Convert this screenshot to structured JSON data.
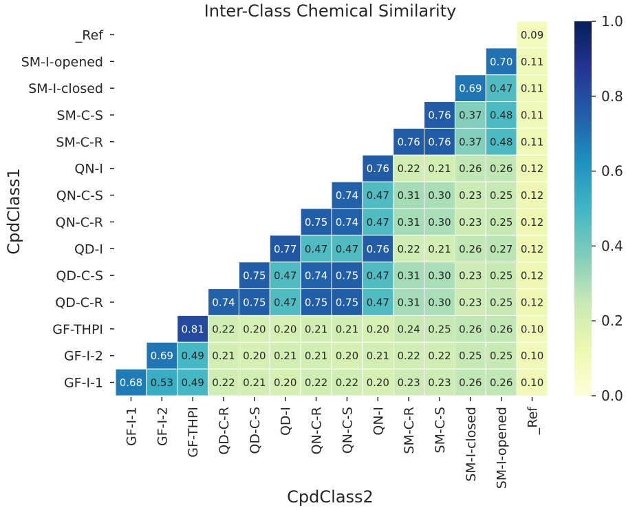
{
  "chart_data": {
    "type": "heatmap",
    "title": "Inter-Class Chemical Similarity",
    "xlabel": "CpdClass2",
    "ylabel": "CpdClass1",
    "x_categories": [
      "GF-I-1",
      "GF-I-2",
      "GF-THPI",
      "QD-C-R",
      "QD-C-S",
      "QD-I",
      "QN-C-R",
      "QN-C-S",
      "QN-I",
      "SM-C-R",
      "SM-C-S",
      "SM-I-closed",
      "SM-I-opened",
      "_Ref"
    ],
    "y_categories": [
      "_Ref",
      "SM-I-opened",
      "SM-I-closed",
      "SM-C-S",
      "SM-C-R",
      "QN-I",
      "QN-C-S",
      "QN-C-R",
      "QD-I",
      "QD-C-S",
      "QD-C-R",
      "GF-THPI",
      "GF-I-2",
      "GF-I-1"
    ],
    "values": [
      [
        null,
        null,
        null,
        null,
        null,
        null,
        null,
        null,
        null,
        null,
        null,
        null,
        null,
        0.09
      ],
      [
        null,
        null,
        null,
        null,
        null,
        null,
        null,
        null,
        null,
        null,
        null,
        null,
        0.7,
        0.11
      ],
      [
        null,
        null,
        null,
        null,
        null,
        null,
        null,
        null,
        null,
        null,
        null,
        0.69,
        0.47,
        0.11
      ],
      [
        null,
        null,
        null,
        null,
        null,
        null,
        null,
        null,
        null,
        null,
        0.76,
        0.37,
        0.48,
        0.11
      ],
      [
        null,
        null,
        null,
        null,
        null,
        null,
        null,
        null,
        null,
        0.76,
        0.76,
        0.37,
        0.48,
        0.11
      ],
      [
        null,
        null,
        null,
        null,
        null,
        null,
        null,
        null,
        0.76,
        0.22,
        0.21,
        0.26,
        0.26,
        0.12
      ],
      [
        null,
        null,
        null,
        null,
        null,
        null,
        null,
        0.74,
        0.47,
        0.31,
        0.3,
        0.23,
        0.25,
        0.12
      ],
      [
        null,
        null,
        null,
        null,
        null,
        null,
        0.75,
        0.74,
        0.47,
        0.31,
        0.3,
        0.23,
        0.25,
        0.12
      ],
      [
        null,
        null,
        null,
        null,
        null,
        0.77,
        0.47,
        0.47,
        0.76,
        0.22,
        0.21,
        0.26,
        0.27,
        0.12
      ],
      [
        null,
        null,
        null,
        null,
        0.75,
        0.47,
        0.74,
        0.75,
        0.47,
        0.31,
        0.3,
        0.23,
        0.25,
        0.12
      ],
      [
        null,
        null,
        null,
        0.74,
        0.75,
        0.47,
        0.75,
        0.75,
        0.47,
        0.31,
        0.3,
        0.23,
        0.25,
        0.12
      ],
      [
        null,
        null,
        0.81,
        0.22,
        0.2,
        0.2,
        0.21,
        0.21,
        0.2,
        0.24,
        0.25,
        0.26,
        0.26,
        0.1
      ],
      [
        null,
        0.69,
        0.49,
        0.21,
        0.2,
        0.21,
        0.21,
        0.2,
        0.21,
        0.22,
        0.22,
        0.25,
        0.25,
        0.1
      ],
      [
        0.68,
        0.53,
        0.49,
        0.22,
        0.21,
        0.2,
        0.22,
        0.22,
        0.2,
        0.23,
        0.23,
        0.26,
        0.26,
        0.1
      ]
    ],
    "value_format": "2 decimals",
    "vmin": 0.0,
    "vmax": 1.0,
    "colormap": "YlGnBu",
    "colormap_stops": [
      "#ffffd9",
      "#edf8b1",
      "#c7e9b4",
      "#7fcdbb",
      "#41b6c4",
      "#1d91c0",
      "#225ea8",
      "#253494",
      "#081d58"
    ],
    "colorbar_ticks": [
      "0.0",
      "0.2",
      "0.4",
      "0.6",
      "0.8",
      "1.0"
    ],
    "grid": false,
    "cell_border_color": "#ffffff"
  }
}
